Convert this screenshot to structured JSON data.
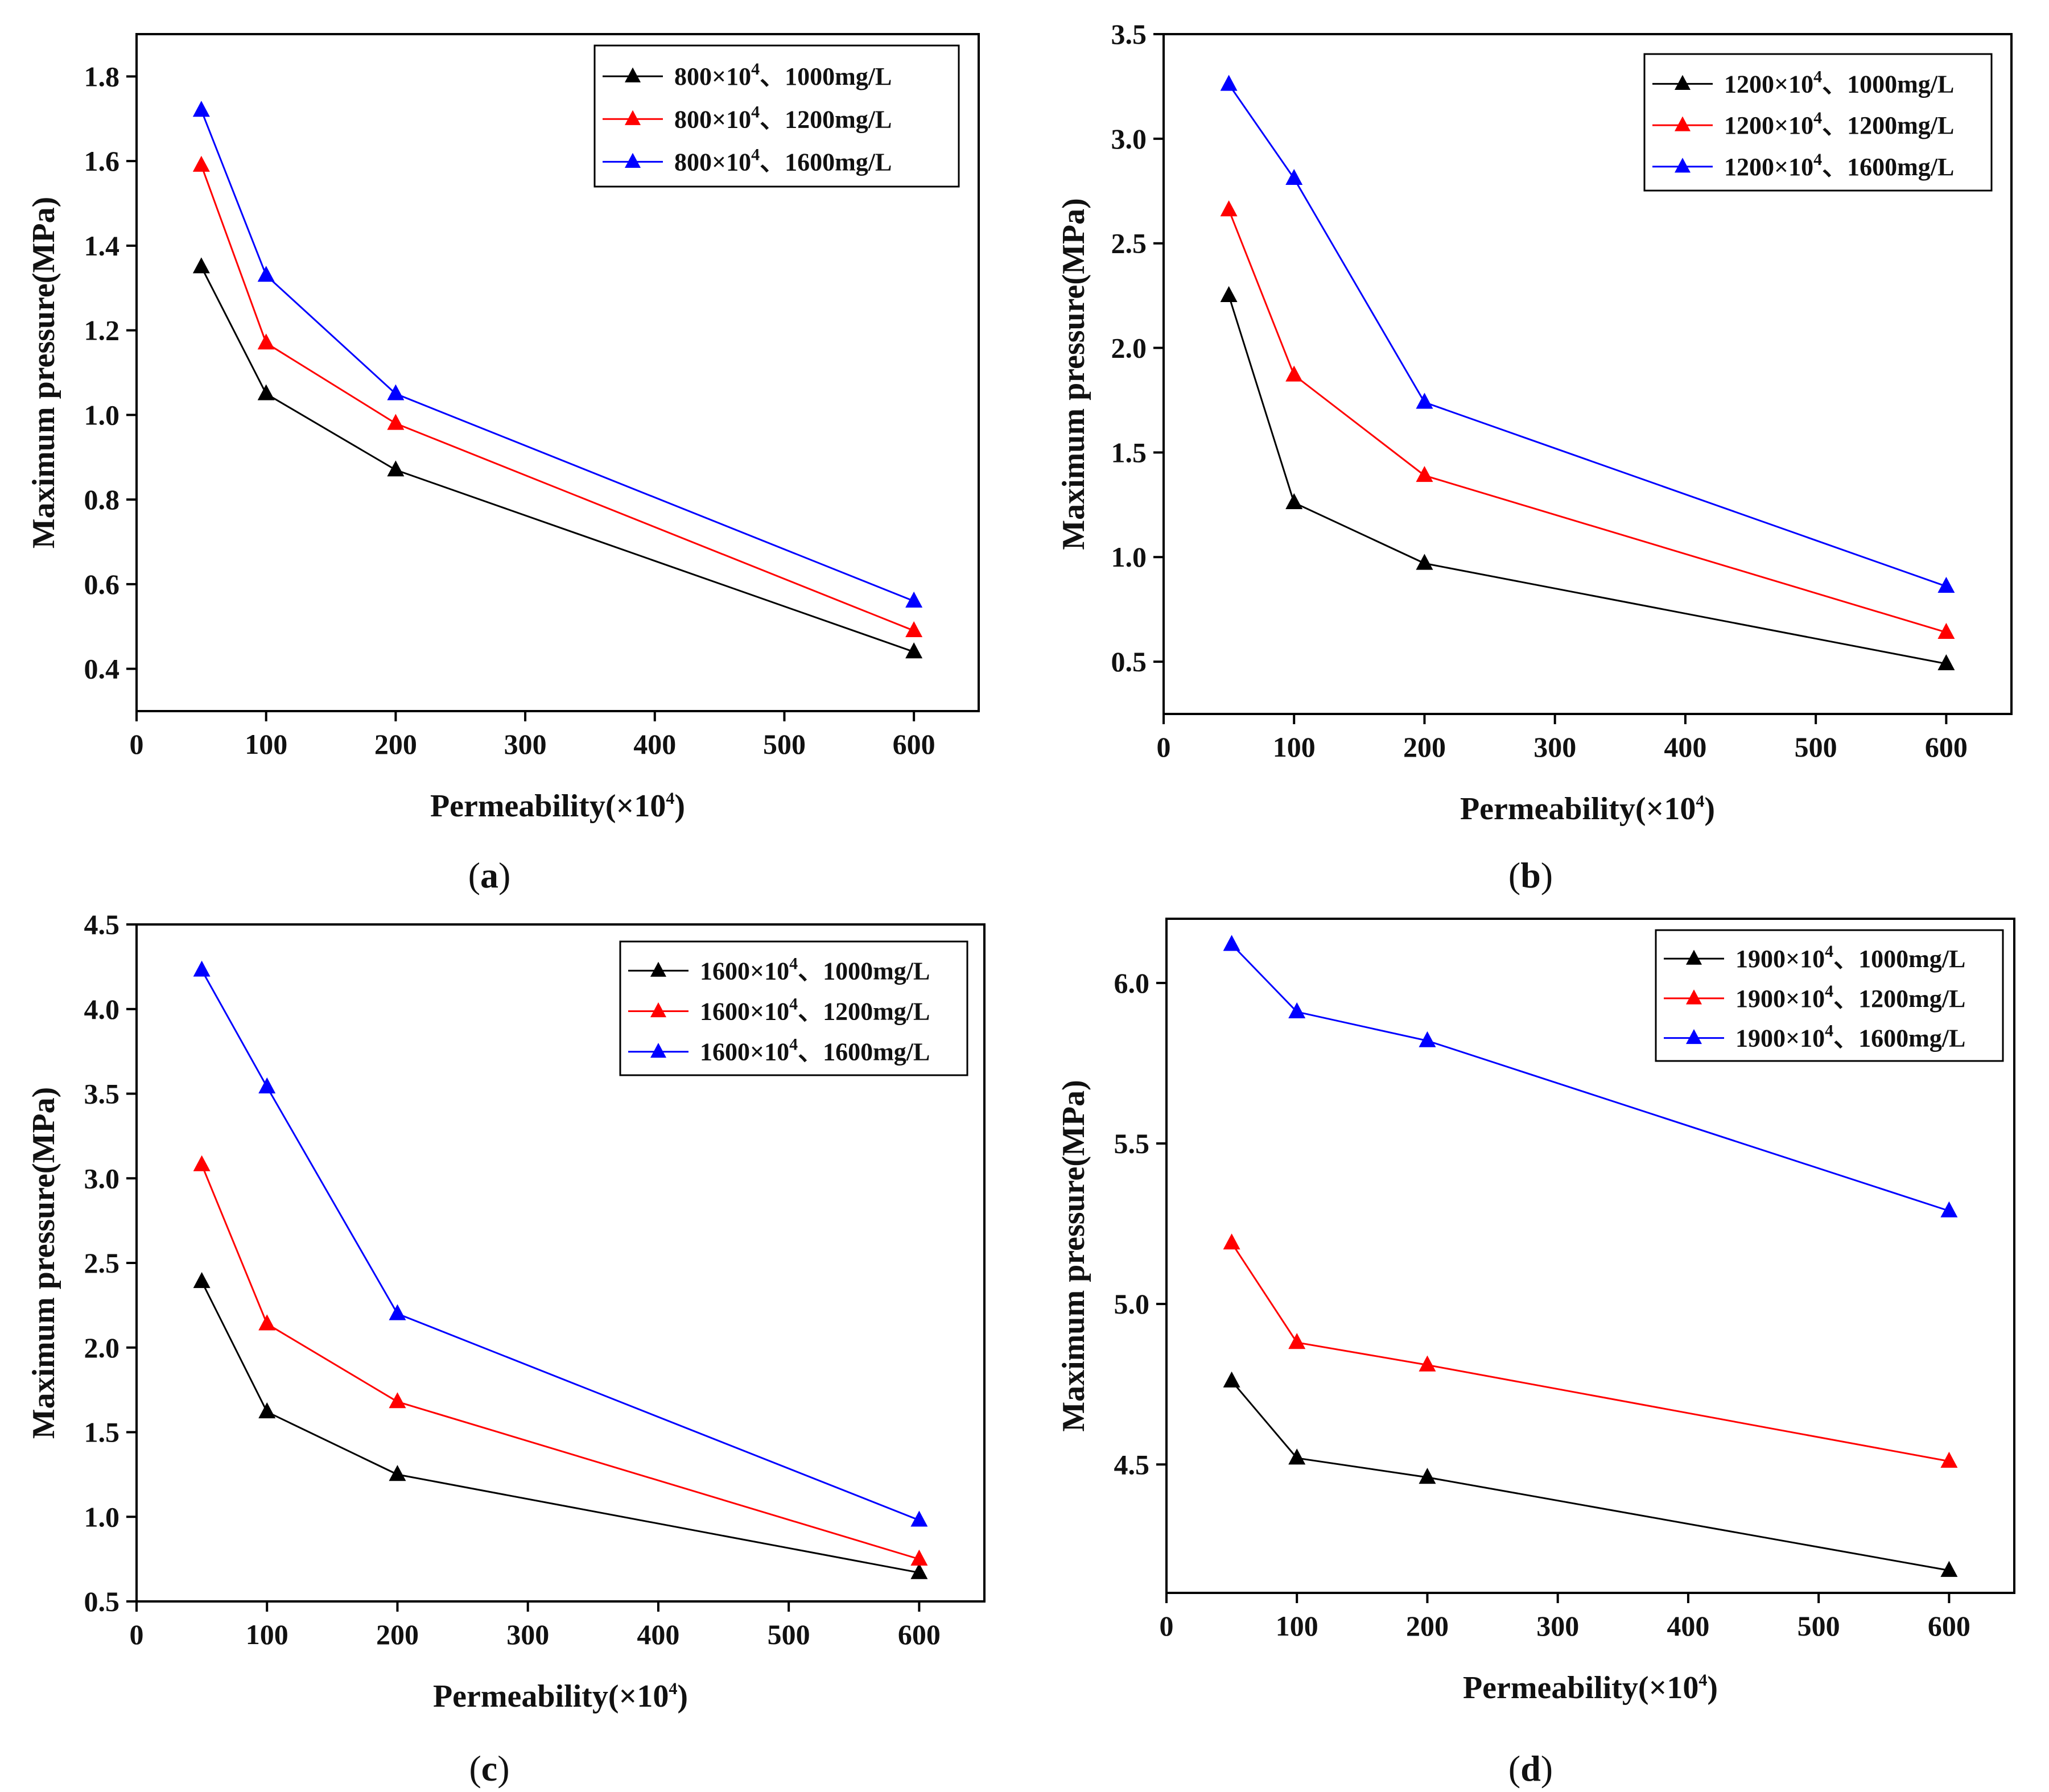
{
  "chart_data": [
    {
      "panel": "a",
      "type": "line",
      "xlabel": "Permeability(×10",
      "xlabel_sup": "4",
      "xlabel_end": ")",
      "ylabel": "Maximum pressure(MPa)",
      "xlim": [
        0,
        650
      ],
      "ylim": [
        0.3,
        1.9
      ],
      "xticks": [
        0,
        100,
        200,
        300,
        400,
        500,
        600
      ],
      "yticks": [
        0.4,
        0.6,
        0.8,
        1.0,
        1.2,
        1.4,
        1.6,
        1.8
      ],
      "ytick_decimals": 1,
      "legend_position": "top-right",
      "x": [
        50,
        100,
        200,
        600
      ],
      "series": [
        {
          "legend_main": "800×10",
          "legend_sup": "4",
          "legend_tail": "、1000mg/L",
          "color": "#000000",
          "values": [
            1.35,
            1.05,
            0.87,
            0.44
          ]
        },
        {
          "legend_main": "800×10",
          "legend_sup": "4",
          "legend_tail": "、1200mg/L",
          "color": "#ff0000",
          "values": [
            1.59,
            1.17,
            0.98,
            0.49
          ]
        },
        {
          "legend_main": "800×10",
          "legend_sup": "4",
          "legend_tail": "、1600mg/L",
          "color": "#0000ff",
          "values": [
            1.72,
            1.33,
            1.05,
            0.56
          ]
        }
      ]
    },
    {
      "panel": "b",
      "type": "line",
      "xlabel": "Permeability(×10",
      "xlabel_sup": "4",
      "xlabel_end": ")",
      "ylabel": "Maximum pressure(MPa)",
      "xlim": [
        0,
        650
      ],
      "ylim": [
        0.25,
        3.5
      ],
      "xticks": [
        0,
        100,
        200,
        300,
        400,
        500,
        600
      ],
      "yticks": [
        0.5,
        1.0,
        1.5,
        2.0,
        2.5,
        3.0,
        3.5
      ],
      "ytick_decimals": 1,
      "legend_position": "top-right",
      "x": [
        50,
        100,
        200,
        600
      ],
      "series": [
        {
          "legend_main": "1200×10",
          "legend_sup": "4",
          "legend_tail": "、1000mg/L",
          "color": "#000000",
          "values": [
            2.25,
            1.26,
            0.97,
            0.49
          ]
        },
        {
          "legend_main": "1200×10",
          "legend_sup": "4",
          "legend_tail": "、1200mg/L",
          "color": "#ff0000",
          "values": [
            2.66,
            1.87,
            1.39,
            0.64
          ]
        },
        {
          "legend_main": "1200×10",
          "legend_sup": "4",
          "legend_tail": "、1600mg/L",
          "color": "#0000ff",
          "values": [
            3.26,
            2.81,
            1.74,
            0.86
          ]
        }
      ]
    },
    {
      "panel": "c",
      "type": "line",
      "xlabel": "Permeability(×10",
      "xlabel_sup": "4",
      "xlabel_end": ")",
      "ylabel": "Maximum pressure(MPa)",
      "xlim": [
        0,
        650
      ],
      "ylim": [
        0.5,
        4.5
      ],
      "xticks": [
        0,
        100,
        200,
        300,
        400,
        500,
        600
      ],
      "yticks": [
        0.5,
        1.0,
        1.5,
        2.0,
        2.5,
        3.0,
        3.5,
        4.0,
        4.5
      ],
      "ytick_decimals": 1,
      "legend_position": "top-right",
      "x": [
        50,
        100,
        200,
        600
      ],
      "series": [
        {
          "legend_main": "1600×10",
          "legend_sup": "4",
          "legend_tail": "、1000mg/L",
          "color": "#000000",
          "values": [
            2.39,
            1.62,
            1.25,
            0.67
          ]
        },
        {
          "legend_main": "1600×10",
          "legend_sup": "4",
          "legend_tail": "、1200mg/L",
          "color": "#ff0000",
          "values": [
            3.08,
            2.14,
            1.68,
            0.75
          ]
        },
        {
          "legend_main": "1600×10",
          "legend_sup": "4",
          "legend_tail": "、1600mg/L",
          "color": "#0000ff",
          "values": [
            4.23,
            3.54,
            2.2,
            0.98
          ]
        }
      ]
    },
    {
      "panel": "d",
      "type": "line",
      "xlabel": "Permeability(×10",
      "xlabel_sup": "4",
      "xlabel_end": ")",
      "ylabel": "Maximum pressure(MPa)",
      "xlim": [
        0,
        650
      ],
      "ylim": [
        4.1,
        6.2
      ],
      "xticks": [
        0,
        100,
        200,
        300,
        400,
        500,
        600
      ],
      "yticks": [
        4.5,
        5.0,
        5.5,
        6.0
      ],
      "ytick_decimals": 1,
      "legend_position": "top-right",
      "x": [
        50,
        100,
        200,
        600
      ],
      "series": [
        {
          "legend_main": "1900×10",
          "legend_sup": "4",
          "legend_tail": "、1000mg/L",
          "color": "#000000",
          "values": [
            4.76,
            4.52,
            4.46,
            4.17
          ]
        },
        {
          "legend_main": "1900×10",
          "legend_sup": "4",
          "legend_tail": "、1200mg/L",
          "color": "#ff0000",
          "values": [
            5.19,
            4.88,
            4.81,
            4.51
          ]
        },
        {
          "legend_main": "1900×10",
          "legend_sup": "4",
          "legend_tail": "、1600mg/L",
          "color": "#0000ff",
          "values": [
            6.12,
            5.91,
            5.82,
            5.29
          ]
        }
      ]
    }
  ],
  "panel_labels": [
    "a",
    "b",
    "c",
    "d"
  ]
}
